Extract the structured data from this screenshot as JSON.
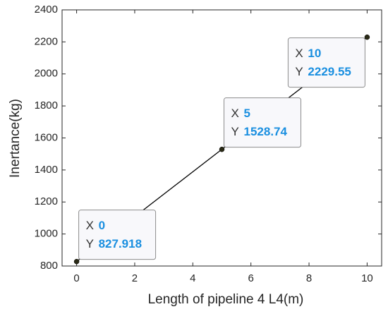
{
  "chart_data": {
    "type": "line",
    "x_label": "Length of pipeline 4 L4(m)",
    "y_label": "Inertance(kg)",
    "x": [
      0,
      5,
      10
    ],
    "series": [
      {
        "color": "#000000",
        "marker_color": "#2a2a16",
        "values": [
          827.918,
          1528.74,
          2229.55
        ]
      }
    ],
    "xlim": [
      -0.5,
      10.5
    ],
    "xticks": [
      0,
      2,
      4,
      6,
      8,
      10
    ],
    "ylim": [
      800,
      2400
    ],
    "yticks": [
      800,
      1000,
      1200,
      1400,
      1600,
      1800,
      2000,
      2200,
      2400
    ],
    "datatip_x_key": "X",
    "datatip_y_key": "Y"
  }
}
